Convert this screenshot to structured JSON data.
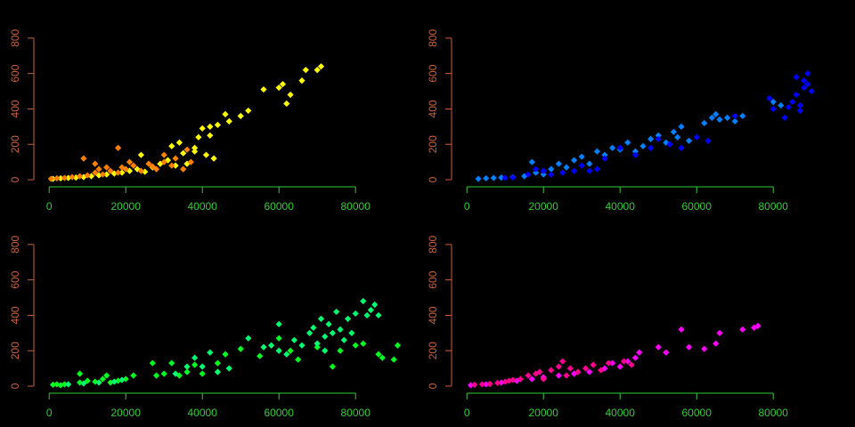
{
  "chart_data": [
    {
      "type": "scatter",
      "xlim": [
        -4000,
        94000
      ],
      "ylim": [
        -40,
        820
      ],
      "xticks": [
        0,
        20000,
        40000,
        60000,
        80000
      ],
      "yticks": [
        0,
        200,
        400,
        600,
        800
      ],
      "xaxis_color": "#33cc33",
      "yaxis_color": "#c8613a",
      "series": [
        {
          "color": "#ffff00",
          "x": [
            1000,
            3000,
            5000,
            7000,
            9000,
            11000,
            13000,
            15000,
            17000,
            19000,
            21000,
            23000,
            24000,
            25000,
            27000,
            29000,
            31000,
            32000,
            33000,
            34000,
            35000,
            36000,
            38000,
            39000,
            40000,
            41000,
            42000,
            43000,
            44000,
            46000,
            47000,
            50000,
            52000,
            56000,
            60000,
            61000,
            62000,
            63000,
            66000,
            67000,
            70000,
            71000,
            42000,
            38000
          ],
          "values": [
            5,
            8,
            10,
            12,
            15,
            20,
            25,
            30,
            35,
            40,
            50,
            60,
            140,
            45,
            70,
            90,
            110,
            190,
            80,
            210,
            150,
            90,
            180,
            240,
            290,
            140,
            250,
            120,
            310,
            370,
            330,
            360,
            390,
            510,
            520,
            540,
            430,
            480,
            560,
            620,
            620,
            640,
            300,
            160
          ]
        },
        {
          "color": "#ff8000",
          "x": [
            500,
            2000,
            4000,
            6000,
            8000,
            9000,
            10000,
            12000,
            13000,
            14000,
            16000,
            18000,
            18000,
            19000,
            20000,
            22000,
            24000,
            26000,
            28000,
            30000,
            30000,
            32000,
            33000,
            35000,
            36000,
            37000,
            12000,
            15000,
            21000,
            27000
          ],
          "values": [
            5,
            8,
            10,
            15,
            20,
            120,
            25,
            40,
            60,
            30,
            50,
            180,
            40,
            70,
            60,
            80,
            50,
            90,
            60,
            100,
            140,
            80,
            120,
            60,
            170,
            100,
            90,
            70,
            100,
            75
          ]
        }
      ]
    },
    {
      "type": "scatter",
      "xlim": [
        -4000,
        94000
      ],
      "ylim": [
        -40,
        820
      ],
      "xticks": [
        0,
        20000,
        40000,
        60000,
        80000
      ],
      "yticks": [
        0,
        200,
        400,
        600,
        800
      ],
      "xaxis_color": "#33cc33",
      "yaxis_color": "#c8613a",
      "series": [
        {
          "color": "#0080ff",
          "x": [
            3000,
            5000,
            7000,
            9000,
            12000,
            15000,
            17000,
            18000,
            20000,
            22000,
            24000,
            26000,
            28000,
            30000,
            32000,
            34000,
            36000,
            38000,
            40000,
            42000,
            44000,
            46000,
            48000,
            50000,
            52000,
            54000,
            55000,
            56000,
            58000,
            62000,
            64000,
            65000,
            66000,
            68000,
            70000,
            72000,
            80000,
            82000
          ],
          "values": [
            5,
            8,
            10,
            12,
            15,
            20,
            100,
            40,
            30,
            60,
            90,
            70,
            110,
            130,
            90,
            160,
            140,
            180,
            170,
            210,
            160,
            190,
            230,
            250,
            210,
            270,
            240,
            300,
            220,
            320,
            350,
            370,
            340,
            350,
            330,
            360,
            440,
            420
          ]
        },
        {
          "color": "#0000ff",
          "x": [
            10000,
            12000,
            16000,
            18000,
            20000,
            22000,
            25000,
            28000,
            30000,
            32000,
            34000,
            36000,
            40000,
            44000,
            48000,
            50000,
            53000,
            56000,
            60000,
            63000,
            70000,
            79000,
            80000,
            83000,
            84000,
            85000,
            86000,
            87000,
            88000,
            89000,
            90000,
            88000,
            86000,
            89000,
            87000
          ],
          "values": [
            10,
            12,
            30,
            60,
            50,
            30,
            40,
            50,
            80,
            50,
            60,
            120,
            180,
            140,
            180,
            230,
            200,
            180,
            240,
            220,
            360,
            460,
            400,
            350,
            410,
            440,
            480,
            420,
            560,
            600,
            500,
            520,
            580,
            540,
            390
          ]
        }
      ]
    },
    {
      "type": "scatter",
      "xlim": [
        -4000,
        94000
      ],
      "ylim": [
        -40,
        820
      ],
      "xticks": [
        0,
        20000,
        40000,
        60000,
        80000
      ],
      "yticks": [
        0,
        200,
        400,
        600,
        800
      ],
      "xaxis_color": "#33cc33",
      "yaxis_color": "#c8613a",
      "series": [
        {
          "color": "#00ff20",
          "x": [
            1000,
            2000,
            3000,
            4000,
            8000,
            8000,
            10000,
            12000,
            14000,
            15000,
            16000,
            18000,
            20000,
            22000,
            27000,
            28000,
            30000,
            32000,
            34000,
            36000,
            38000,
            40000,
            44000,
            46000,
            50000,
            55000,
            60000,
            63000,
            65000,
            70000,
            74000,
            76000,
            80000,
            82000,
            86000,
            87000,
            90000,
            91000
          ],
          "values": [
            8,
            10,
            5,
            10,
            70,
            20,
            30,
            25,
            40,
            60,
            20,
            30,
            40,
            60,
            130,
            60,
            70,
            130,
            60,
            80,
            120,
            70,
            130,
            180,
            210,
            170,
            270,
            200,
            150,
            220,
            110,
            200,
            230,
            240,
            180,
            160,
            150,
            230
          ]
        },
        {
          "color": "#00ff70",
          "x": [
            5000,
            9000,
            13000,
            17000,
            19000,
            33000,
            36000,
            38000,
            40000,
            42000,
            44000,
            47000,
            52000,
            56000,
            58000,
            60000,
            62000,
            64000,
            66000,
            68000,
            69000,
            70000,
            71000,
            72000,
            73000,
            74000,
            75000,
            76000,
            77000,
            78000,
            79000,
            80000,
            82000,
            83000,
            84000,
            85000,
            86000,
            72000,
            60000
          ],
          "values": [
            10,
            15,
            20,
            25,
            35,
            70,
            110,
            160,
            110,
            190,
            80,
            100,
            270,
            220,
            230,
            350,
            180,
            260,
            230,
            300,
            330,
            240,
            380,
            280,
            350,
            300,
            420,
            320,
            260,
            380,
            300,
            410,
            480,
            400,
            430,
            460,
            400,
            200,
            200
          ]
        }
      ]
    },
    {
      "type": "scatter",
      "xlim": [
        -4000,
        94000
      ],
      "ylim": [
        -40,
        820
      ],
      "xticks": [
        0,
        20000,
        40000,
        60000,
        80000
      ],
      "yticks": [
        0,
        200,
        400,
        600,
        800
      ],
      "xaxis_color": "#33cc33",
      "yaxis_color": "#c8613a",
      "series": [
        {
          "color": "#ff00ff",
          "x": [
            1000,
            5000,
            9000,
            13000,
            17000,
            20000,
            24000,
            28000,
            32000,
            36000,
            38000,
            40000,
            42000,
            44000,
            45000,
            50000,
            52000,
            56000,
            58000,
            62000,
            65000,
            66000,
            72000,
            75000,
            76000
          ],
          "values": [
            5,
            10,
            20,
            30,
            40,
            50,
            60,
            70,
            80,
            100,
            130,
            110,
            140,
            160,
            190,
            220,
            190,
            320,
            220,
            210,
            240,
            300,
            320,
            330,
            340
          ]
        },
        {
          "color": "#ff0090",
          "x": [
            2000,
            4000,
            6000,
            8000,
            10000,
            11000,
            12000,
            14000,
            16000,
            18000,
            19000,
            20000,
            22000,
            24000,
            25000,
            26000,
            27000,
            29000,
            31000,
            33000,
            35000,
            37000,
            41000,
            43000
          ],
          "values": [
            8,
            10,
            12,
            18,
            25,
            30,
            35,
            40,
            60,
            70,
            80,
            40,
            90,
            110,
            140,
            60,
            100,
            80,
            100,
            120,
            90,
            130,
            140,
            120
          ]
        }
      ]
    }
  ]
}
